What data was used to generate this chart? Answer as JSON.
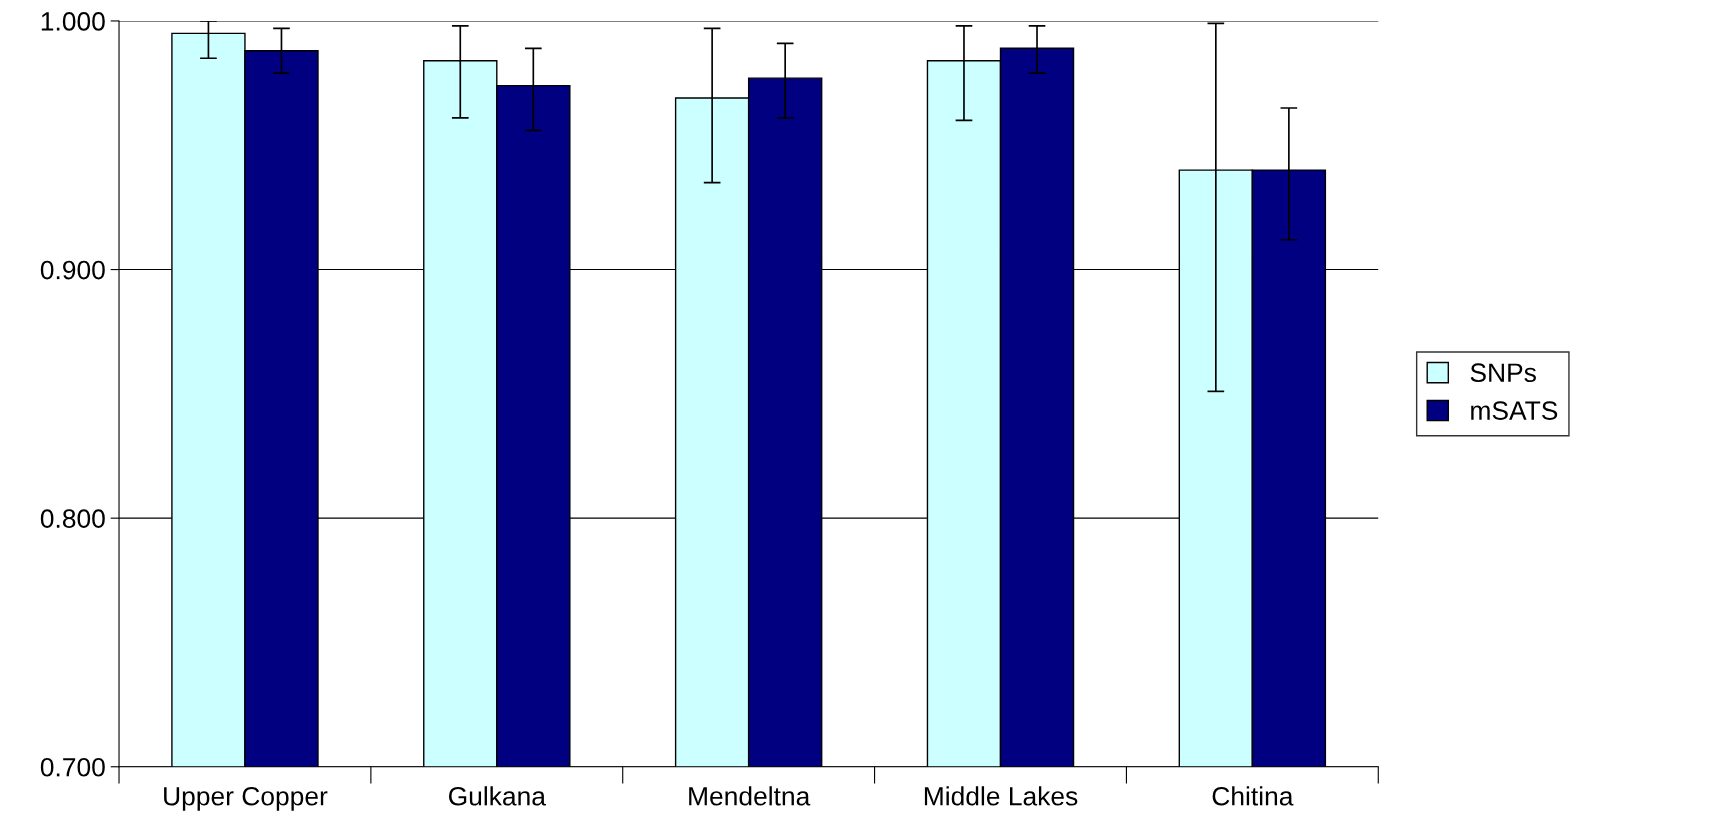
{
  "chart_data": {
    "type": "bar",
    "categories": [
      "Upper Copper",
      "Gulkana",
      "Mendeltna",
      "Middle Lakes",
      "Chitina"
    ],
    "series": [
      {
        "name": "SNPs",
        "color": "#ccffff",
        "values": [
          0.995,
          0.984,
          0.969,
          0.984,
          0.94
        ],
        "errors": [
          [
            0.985,
            1.0
          ],
          [
            0.961,
            0.998
          ],
          [
            0.935,
            0.997
          ],
          [
            0.96,
            0.998
          ],
          [
            0.851,
            0.999
          ]
        ]
      },
      {
        "name": "mSATS",
        "color": "#000080",
        "values": [
          0.988,
          0.974,
          0.977,
          0.989,
          0.94
        ],
        "errors": [
          [
            0.979,
            0.997
          ],
          [
            0.956,
            0.989
          ],
          [
            0.961,
            0.991
          ],
          [
            0.979,
            0.998
          ],
          [
            0.912,
            0.965
          ]
        ]
      }
    ],
    "ylim": [
      0.7,
      1.0
    ],
    "yticks": [
      {
        "value": 0.7,
        "label": "0.700"
      },
      {
        "value": 0.8,
        "label": "0.800"
      },
      {
        "value": 0.9,
        "label": "0.900"
      },
      {
        "value": 1.0,
        "label": "1.000"
      }
    ],
    "grid": "y",
    "legend": "right"
  }
}
